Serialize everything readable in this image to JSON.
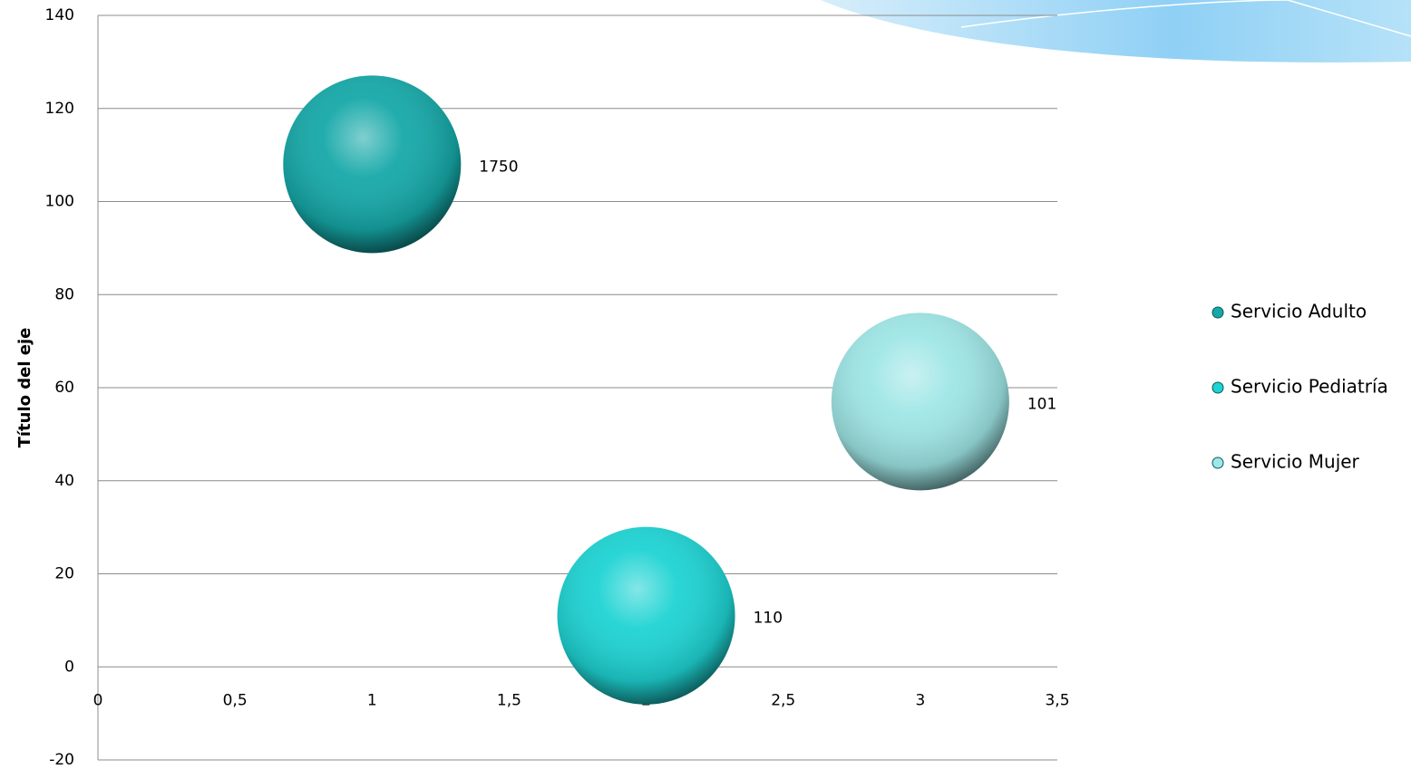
{
  "chart_data": {
    "type": "bubble",
    "y_label": "Título del eje",
    "series": [
      {
        "name": "Servicio Adulto",
        "color": "#16a8a8",
        "x": [
          1
        ],
        "values": [
          108
        ],
        "sizes": [
          1750
        ]
      },
      {
        "name": "Servicio Pediatría",
        "color": "#1ed3d3",
        "x": [
          2
        ],
        "values": [
          11
        ],
        "sizes": [
          110
        ]
      },
      {
        "name": "Servicio Mujer",
        "color": "#9fe6e6",
        "x": [
          3
        ],
        "values": [
          57
        ],
        "sizes": [
          101
        ]
      }
    ],
    "xlim": [
      0,
      3.5
    ],
    "xticks": [
      0,
      {
        "value": 0.5,
        "label": "0,5"
      },
      1,
      {
        "value": 1.5,
        "label": "1,5"
      },
      2,
      {
        "value": 2.5,
        "label": "2,5"
      },
      3,
      {
        "value": 3.5,
        "label": "3,5"
      }
    ],
    "ylim": [
      -20,
      140
    ],
    "yticks": [
      -20,
      0,
      20,
      40,
      60,
      80,
      100,
      120,
      140
    ],
    "grid": true,
    "legend": "right"
  }
}
